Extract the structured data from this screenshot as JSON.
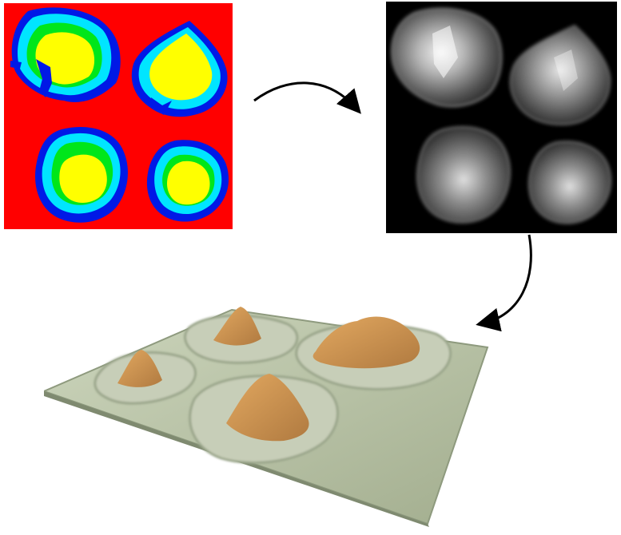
{
  "diagram": {
    "stages": [
      {
        "id": "color-map",
        "icon": "segmented-color-map"
      },
      {
        "id": "height-map",
        "icon": "grayscale-height-map"
      },
      {
        "id": "terrain-render",
        "icon": "3d-terrain-render"
      }
    ],
    "connections": [
      {
        "from": "color-map",
        "to": "height-map"
      },
      {
        "from": "height-map",
        "to": "terrain-render"
      }
    ]
  },
  "colors": {
    "background_red": "#ff0000",
    "outer_blue": "#0019e6",
    "cyan": "#00e5ff",
    "green": "#00e61a",
    "yellow": "#ffff00",
    "height_bg": "#000000",
    "ground": "#b2bea0",
    "ground_edge": "#8e9a7e",
    "peak": "#c98e4e",
    "plateau": "#c7ceb8"
  }
}
